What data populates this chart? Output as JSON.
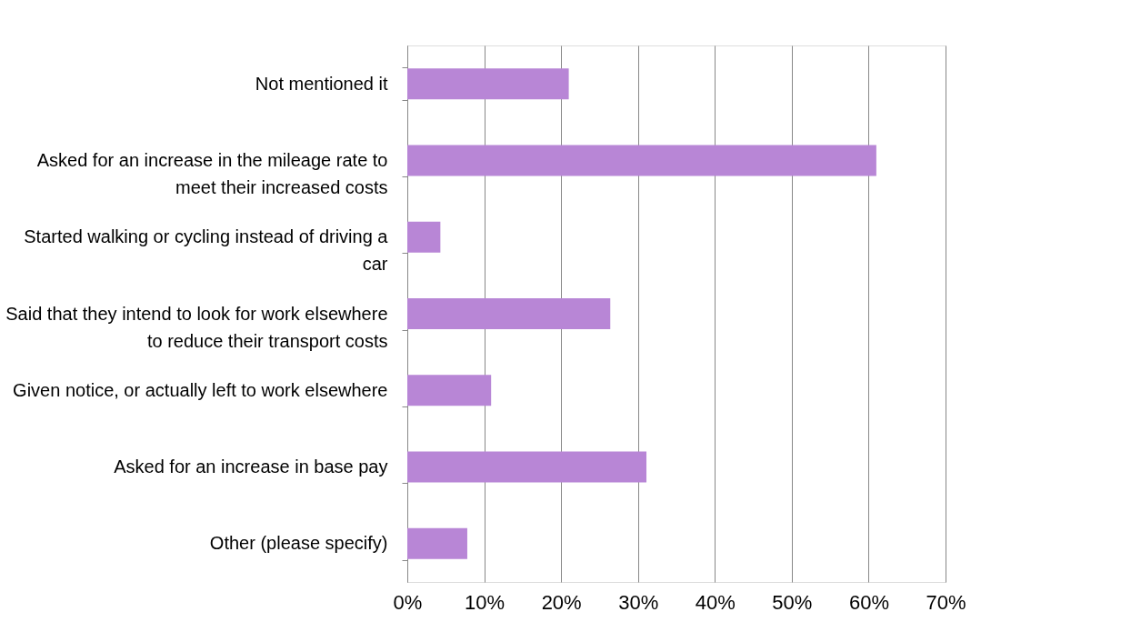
{
  "chart_data": {
    "type": "bar",
    "orientation": "horizontal",
    "categories": [
      "Not mentioned it",
      "Asked for an increase in the mileage rate to meet their increased costs",
      "Started walking or cycling instead of driving a car",
      "Said that they intend to look for work elsewhere to reduce their transport costs",
      "Given notice, or actually left to work elsewhere",
      "Asked for an increase in base pay",
      "Other (please specify)"
    ],
    "values": [
      21,
      61,
      4.3,
      26.4,
      10.9,
      31.1,
      7.8
    ],
    "color": "#b886d6",
    "xlim": [
      0,
      70
    ],
    "xticks": [
      {
        "value": 0,
        "label": "0%"
      },
      {
        "value": 10,
        "label": "10%"
      },
      {
        "value": 20,
        "label": "20%"
      },
      {
        "value": 30,
        "label": "30%"
      },
      {
        "value": 40,
        "label": "40%"
      },
      {
        "value": 50,
        "label": "50%"
      },
      {
        "value": 60,
        "label": "60%"
      },
      {
        "value": 70,
        "label": "70%"
      }
    ],
    "grid": "x"
  }
}
